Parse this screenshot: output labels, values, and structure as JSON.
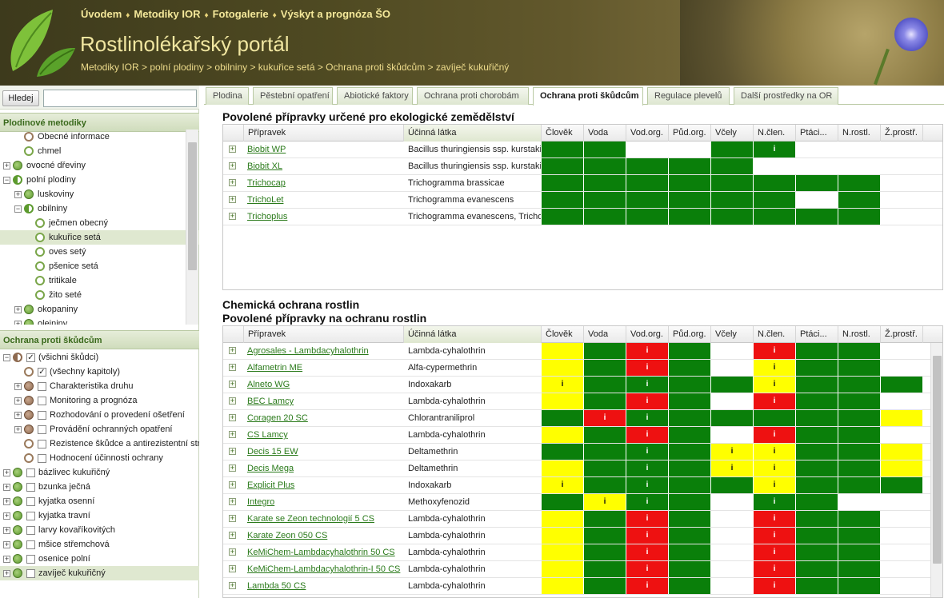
{
  "header": {
    "nav": [
      "Úvodem",
      "Metodiky IOR",
      "Fotogalerie",
      "Výskyt a prognóza ŠO"
    ],
    "nav_sep": "♦",
    "title": "Rostlinolékařský portál",
    "breadcrumb": "Metodiky IOR > polní plodiny > obilniny > kukuřice setá > Ochrana proti škůdcům > zavíječ kukuřičný"
  },
  "search": {
    "button_label": "Hledej",
    "value": ""
  },
  "sidebar": {
    "panel1_title": "Plodinové metodiky",
    "panel2_title": "Ochrana proti škůdcům",
    "tree1": [
      {
        "label": "Obecné informace",
        "level": 1,
        "exp": "",
        "icon": "ring-brown"
      },
      {
        "label": "chmel",
        "level": 1,
        "exp": "",
        "icon": "ring"
      },
      {
        "label": "ovocné dřeviny",
        "level": 0,
        "exp": "+",
        "icon": "green"
      },
      {
        "label": "polní plodiny",
        "level": 0,
        "exp": "−",
        "icon": "half-green"
      },
      {
        "label": "luskoviny",
        "level": 1,
        "exp": "+",
        "icon": "green"
      },
      {
        "label": "obilniny",
        "level": 1,
        "exp": "−",
        "icon": "half-green"
      },
      {
        "label": "ječmen obecný",
        "level": 2,
        "exp": "",
        "icon": "ring"
      },
      {
        "label": "kukuřice setá",
        "level": 2,
        "exp": "",
        "icon": "ring",
        "selected": true
      },
      {
        "label": "oves setý",
        "level": 2,
        "exp": "",
        "icon": "ring"
      },
      {
        "label": "pšenice setá",
        "level": 2,
        "exp": "",
        "icon": "ring"
      },
      {
        "label": "tritikale",
        "level": 2,
        "exp": "",
        "icon": "ring"
      },
      {
        "label": "žito seté",
        "level": 2,
        "exp": "",
        "icon": "ring"
      },
      {
        "label": "okopaniny",
        "level": 1,
        "exp": "+",
        "icon": "green"
      },
      {
        "label": "olejniny",
        "level": 1,
        "exp": "+",
        "icon": "green"
      }
    ],
    "tree2": [
      {
        "label": "(všichni škůdci)",
        "level": 0,
        "exp": "−",
        "icon": "half-brown",
        "check": "✓"
      },
      {
        "label": "(všechny kapitoly)",
        "level": 1,
        "exp": "",
        "icon": "ring-brown",
        "check": "✓"
      },
      {
        "label": "Charakteristika druhu",
        "level": 1,
        "exp": "+",
        "icon": "brown",
        "check": ""
      },
      {
        "label": "Monitoring a prognóza",
        "level": 1,
        "exp": "+",
        "icon": "brown",
        "check": ""
      },
      {
        "label": "Rozhodování o provedení ošetření",
        "level": 1,
        "exp": "+",
        "icon": "brown",
        "check": ""
      },
      {
        "label": "Provádění ochranných opatření",
        "level": 1,
        "exp": "+",
        "icon": "brown",
        "check": ""
      },
      {
        "label": "Rezistence škůdce a antirezistentní strategie",
        "level": 1,
        "exp": "",
        "icon": "ring-brown",
        "check": ""
      },
      {
        "label": "Hodnocení účinnosti ochrany",
        "level": 1,
        "exp": "",
        "icon": "ring-brown",
        "check": ""
      },
      {
        "label": "bázlivec kukuřičný",
        "level": 0,
        "exp": "+",
        "icon": "green",
        "check": ""
      },
      {
        "label": "bzunka ječná",
        "level": 0,
        "exp": "+",
        "icon": "green",
        "check": ""
      },
      {
        "label": "kyjatka osenní",
        "level": 0,
        "exp": "+",
        "icon": "green",
        "check": ""
      },
      {
        "label": "kyjatka travní",
        "level": 0,
        "exp": "+",
        "icon": "green",
        "check": ""
      },
      {
        "label": "larvy kovaříkovitých",
        "level": 0,
        "exp": "+",
        "icon": "green",
        "check": ""
      },
      {
        "label": "mšice střemchová",
        "level": 0,
        "exp": "+",
        "icon": "green",
        "check": ""
      },
      {
        "label": "osenice polní",
        "level": 0,
        "exp": "+",
        "icon": "green",
        "check": ""
      },
      {
        "label": "zavíječ kukuřičný",
        "level": 0,
        "exp": "+",
        "icon": "green",
        "check": "",
        "selected": true
      }
    ]
  },
  "tabs": [
    {
      "label": "Plodina",
      "active": false
    },
    {
      "label": "Pěstební opatření",
      "active": false
    },
    {
      "label": "Abiotické faktory",
      "active": false
    },
    {
      "label": "Ochrana proti chorobám",
      "active": false
    },
    {
      "label": "Ochrana proti škůdcům",
      "active": true
    },
    {
      "label": "Regulace plevelů",
      "active": false
    },
    {
      "label": "Další prostředky na OR",
      "active": false
    }
  ],
  "columns": [
    "Přípravek",
    "Účinná látka",
    "Člověk",
    "Voda",
    "Vod.org.",
    "Půd.org.",
    "Včely",
    "N.člen.",
    "Ptáci...",
    "N.rostl.",
    "Ž.prostř."
  ],
  "eco": {
    "title": "Povolené přípravky určené pro ekologické zemědělství",
    "rows": [
      {
        "name": "Biobit WP",
        "subst": "Bacillus thuringiensis ssp. kurstaki",
        "r": [
          "g",
          "g",
          "w",
          "w",
          "g",
          "g",
          "w",
          "w",
          "w"
        ],
        "m": [
          "",
          "",
          "",
          "",
          "",
          "i",
          "",
          "",
          ""
        ]
      },
      {
        "name": "Biobit XL",
        "subst": "Bacillus thuringiensis ssp. kurstaki",
        "r": [
          "g",
          "g",
          "g",
          "g",
          "g",
          "w",
          "w",
          "w",
          "w"
        ],
        "m": [
          "",
          "",
          "",
          "",
          "",
          "",
          "",
          "",
          ""
        ]
      },
      {
        "name": "Trichocap",
        "subst": "Trichogramma brassicae",
        "r": [
          "g",
          "g",
          "g",
          "g",
          "g",
          "g",
          "g",
          "g",
          "w"
        ],
        "m": [
          "",
          "",
          "",
          "",
          "",
          "",
          "",
          "",
          ""
        ]
      },
      {
        "name": "TrichoLet",
        "subst": "Trichogramma evanescens",
        "r": [
          "g",
          "g",
          "g",
          "g",
          "g",
          "g",
          "w",
          "g",
          "w"
        ],
        "m": [
          "",
          "",
          "",
          "",
          "",
          "",
          "",
          "",
          ""
        ]
      },
      {
        "name": "Trichoplus",
        "subst": "Trichogramma evanescens, Trichogramma cacoeciae",
        "r": [
          "g",
          "g",
          "g",
          "g",
          "g",
          "g",
          "g",
          "g",
          "w"
        ],
        "m": [
          "",
          "",
          "",
          "",
          "",
          "",
          "",
          "",
          ""
        ]
      }
    ]
  },
  "chem": {
    "title1": "Chemická ochrana rostlin",
    "title2": "Povolené přípravky na ochranu rostlin",
    "rows": [
      {
        "name": "Agrosales - Lambdacyhalothrin",
        "subst": "Lambda-cyhalothrin",
        "r": [
          "y",
          "g",
          "rd",
          "g",
          "w",
          "rd",
          "g",
          "g",
          "w"
        ],
        "m": [
          "",
          "",
          "i",
          "",
          "",
          "i",
          "",
          "",
          ""
        ]
      },
      {
        "name": "Alfametrin ME",
        "subst": "Alfa-cypermethrin",
        "r": [
          "y",
          "g",
          "rd",
          "g",
          "w",
          "y",
          "g",
          "g",
          "w"
        ],
        "m": [
          "",
          "",
          "i",
          "",
          "",
          "i",
          "",
          "",
          ""
        ]
      },
      {
        "name": "Alneto WG",
        "subst": "Indoxakarb",
        "r": [
          "y",
          "g",
          "g",
          "g",
          "g",
          "y",
          "g",
          "g",
          "g"
        ],
        "m": [
          "i",
          "",
          "i",
          "",
          "",
          "i",
          "",
          "",
          ""
        ]
      },
      {
        "name": "BEC Lamcy",
        "subst": "Lambda-cyhalothrin",
        "r": [
          "y",
          "g",
          "rd",
          "g",
          "w",
          "rd",
          "g",
          "g",
          "w"
        ],
        "m": [
          "",
          "",
          "i",
          "",
          "",
          "i",
          "",
          "",
          ""
        ]
      },
      {
        "name": "Coragen 20 SC",
        "subst": "Chlorantraniliprol",
        "r": [
          "g",
          "rd",
          "g",
          "g",
          "g",
          "g",
          "g",
          "g",
          "y"
        ],
        "m": [
          "",
          "i",
          "i",
          "",
          "",
          "",
          "",
          "",
          ""
        ]
      },
      {
        "name": "CS Lamcy",
        "subst": "Lambda-cyhalothrin",
        "r": [
          "y",
          "g",
          "rd",
          "g",
          "w",
          "rd",
          "g",
          "g",
          "w"
        ],
        "m": [
          "",
          "",
          "i",
          "",
          "",
          "i",
          "",
          "",
          ""
        ]
      },
      {
        "name": "Decis 15 EW",
        "subst": "Deltamethrin",
        "r": [
          "g",
          "g",
          "g",
          "g",
          "y",
          "y",
          "g",
          "g",
          "y"
        ],
        "m": [
          "",
          "",
          "i",
          "",
          "i",
          "i",
          "",
          "",
          ""
        ]
      },
      {
        "name": "Decis Mega",
        "subst": "Deltamethrin",
        "r": [
          "y",
          "g",
          "g",
          "g",
          "y",
          "y",
          "g",
          "g",
          "y"
        ],
        "m": [
          "",
          "",
          "i",
          "",
          "i",
          "i",
          "",
          "",
          ""
        ]
      },
      {
        "name": "Explicit Plus",
        "subst": "Indoxakarb",
        "r": [
          "y",
          "g",
          "g",
          "g",
          "g",
          "y",
          "g",
          "g",
          "g"
        ],
        "m": [
          "i",
          "",
          "i",
          "",
          "",
          "i",
          "",
          "",
          ""
        ]
      },
      {
        "name": "Integro",
        "subst": "Methoxyfenozid",
        "r": [
          "g",
          "y",
          "g",
          "g",
          "w",
          "g",
          "g",
          "w",
          "w"
        ],
        "m": [
          "",
          "i",
          "i",
          "",
          "",
          "i",
          "",
          "",
          ""
        ]
      },
      {
        "name": "Karate se Zeon technologií 5 CS",
        "subst": "Lambda-cyhalothrin",
        "r": [
          "y",
          "g",
          "rd",
          "g",
          "w",
          "rd",
          "g",
          "g",
          "w"
        ],
        "m": [
          "",
          "",
          "i",
          "",
          "",
          "i",
          "",
          "",
          ""
        ]
      },
      {
        "name": "Karate Zeon 050 CS",
        "subst": "Lambda-cyhalothrin",
        "r": [
          "y",
          "g",
          "rd",
          "g",
          "w",
          "rd",
          "g",
          "g",
          "w"
        ],
        "m": [
          "",
          "",
          "i",
          "",
          "",
          "i",
          "",
          "",
          ""
        ]
      },
      {
        "name": "KeMiChem-Lambdacyhalothrin 50 CS",
        "subst": "Lambda-cyhalothrin",
        "r": [
          "y",
          "g",
          "rd",
          "g",
          "w",
          "rd",
          "g",
          "g",
          "w"
        ],
        "m": [
          "",
          "",
          "i",
          "",
          "",
          "i",
          "",
          "",
          ""
        ]
      },
      {
        "name": "KeMiChem-Lambdacyhalothrin-I 50 CS",
        "subst": "Lambda-cyhalothrin",
        "r": [
          "y",
          "g",
          "rd",
          "g",
          "w",
          "rd",
          "g",
          "g",
          "w"
        ],
        "m": [
          "",
          "",
          "i",
          "",
          "",
          "i",
          "",
          "",
          ""
        ]
      },
      {
        "name": "Lambda 50 CS",
        "subst": "Lambda-cyhalothrin",
        "r": [
          "y",
          "g",
          "rd",
          "g",
          "w",
          "rd",
          "g",
          "g",
          "w"
        ],
        "m": [
          "",
          "",
          "i",
          "",
          "",
          "i",
          "",
          "",
          ""
        ]
      }
    ]
  }
}
